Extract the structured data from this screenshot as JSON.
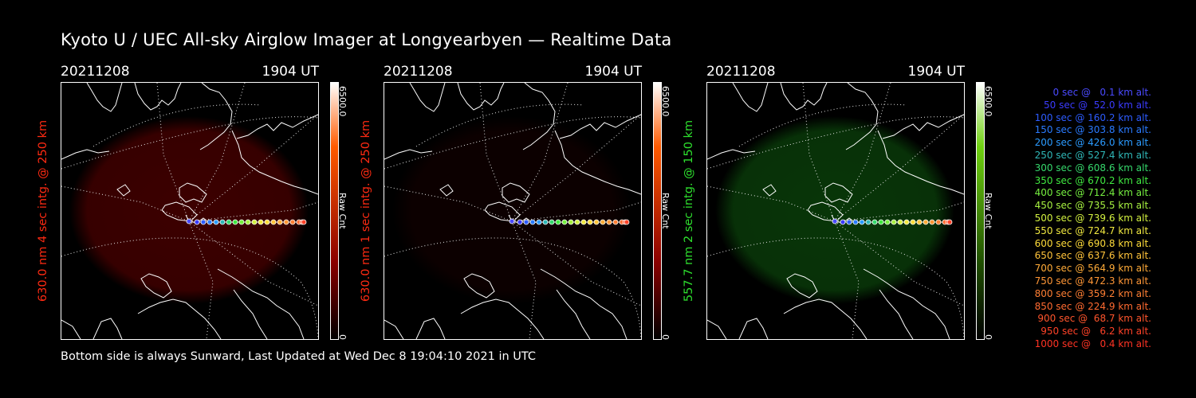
{
  "page": {
    "title": "Kyoto U / UEC All-sky Airglow Imager at Longyearbyen — Realtime Data",
    "footer": "Bottom side is always Sunward, Last Updated at Wed Dec  8 19:04:10 2021 in UTC"
  },
  "panels": [
    {
      "date": "20211208",
      "time": "1904 UT",
      "label": "630.0 nm 4 sec intg. @ 250 km",
      "label_color": "#ff2a12",
      "cb_max": "6500.0",
      "cb_unit": "Raw Cnt",
      "cb_min": "0",
      "glow_color": "#6e0000",
      "glow_strength": 0.55
    },
    {
      "date": "20211208",
      "time": "1904 UT",
      "label": "630.0 nm 1 sec intg. @ 250 km",
      "label_color": "#ff2a12",
      "cb_max": "6500.0",
      "cb_unit": "Raw Cnt",
      "cb_min": "0",
      "glow_color": "#3a0000",
      "glow_strength": 0.22
    },
    {
      "date": "20211208",
      "time": "1904 UT",
      "label": "557.7 nm 2 sec intg. @ 150 km",
      "label_color": "#2ee02e",
      "cb_max": "6500.0",
      "cb_unit": "Raw Cnt",
      "cb_min": "0",
      "glow_color": "#0e5a0e",
      "glow_strength": 0.6
    }
  ],
  "legend": [
    {
      "text": "   0 sec @   0.1 km alt.",
      "color": "#4a4aff"
    },
    {
      "text": "  50 sec @  52.0 km alt.",
      "color": "#3b3bff"
    },
    {
      "text": " 100 sec @ 160.2 km alt.",
      "color": "#2d5cff"
    },
    {
      "text": " 150 sec @ 303.8 km alt.",
      "color": "#2a7bff"
    },
    {
      "text": " 200 sec @ 426.0 km alt.",
      "color": "#2b9bff"
    },
    {
      "text": " 250 sec @ 527.4 km alt.",
      "color": "#2fb7b7"
    },
    {
      "text": " 300 sec @ 608.6 km alt.",
      "color": "#36d86c"
    },
    {
      "text": " 350 sec @ 670.2 km alt.",
      "color": "#40e840"
    },
    {
      "text": " 400 sec @ 712.4 km alt.",
      "color": "#76f040"
    },
    {
      "text": " 450 sec @ 735.5 km alt.",
      "color": "#a6f040"
    },
    {
      "text": " 500 sec @ 739.6 km alt.",
      "color": "#d2f040"
    },
    {
      "text": " 550 sec @ 724.7 km alt.",
      "color": "#f0e840"
    },
    {
      "text": " 600 sec @ 690.8 km alt.",
      "color": "#ffdc3a"
    },
    {
      "text": " 650 sec @ 637.6 km alt.",
      "color": "#ffc33a"
    },
    {
      "text": " 700 sec @ 564.9 km alt.",
      "color": "#ffab38"
    },
    {
      "text": " 750 sec @ 472.3 km alt.",
      "color": "#ff9636"
    },
    {
      "text": " 800 sec @ 359.2 km alt.",
      "color": "#ff7f34"
    },
    {
      "text": " 850 sec @ 224.9 km alt.",
      "color": "#ff6a30"
    },
    {
      "text": " 900 sec @  68.7 km alt.",
      "color": "#ff552c"
    },
    {
      "text": " 950 sec @   6.2 km alt.",
      "color": "#ff4228"
    },
    {
      "text": "1000 sec @   0.4 km alt.",
      "color": "#ff3324"
    }
  ]
}
